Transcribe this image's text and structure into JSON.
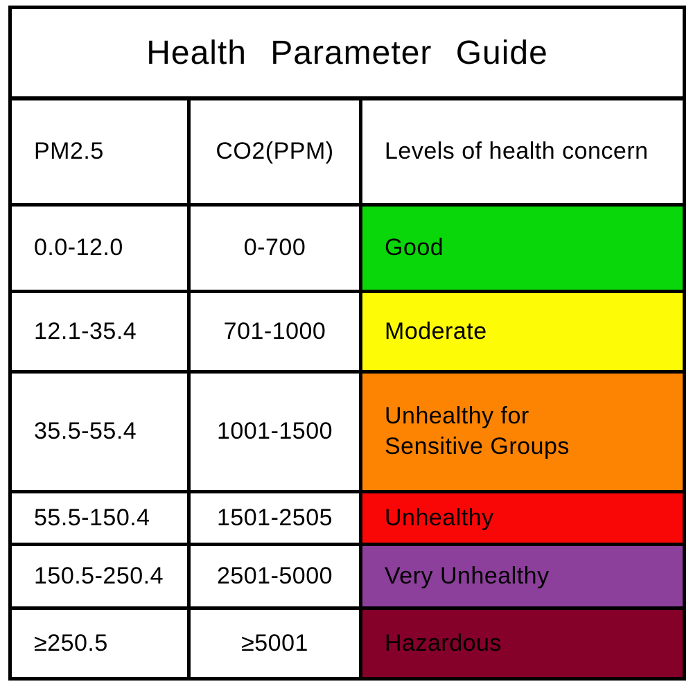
{
  "title": "Health Parameter Guide",
  "table": {
    "columns": [
      {
        "label": "PM2.5"
      },
      {
        "label": "CO2(PPM)"
      },
      {
        "label": "Levels of health concern"
      }
    ],
    "rows": [
      {
        "pm25": "0.0-12.0",
        "co2": "0-700",
        "level": "Good",
        "color": "#0ad70a"
      },
      {
        "pm25": "12.1-35.4",
        "co2": "701-1000",
        "level": "Moderate",
        "color": "#fefb06"
      },
      {
        "pm25": "35.5-55.4",
        "co2": "1001-1500",
        "level": "Unhealthy for\nSensitive Groups",
        "color": "#fd8402"
      },
      {
        "pm25": "55.5-150.4",
        "co2": "1501-2505",
        "level": "Unhealthy",
        "color": "#f90707"
      },
      {
        "pm25": "150.5-250.4",
        "co2": "2501-5000",
        "level": "Very Unhealthy",
        "color": "#8d3f9c"
      },
      {
        "pm25": "≥250.5",
        "co2": "≥5001",
        "level": "Hazardous",
        "color": "#850129"
      }
    ]
  },
  "chart_data": {
    "type": "table",
    "title": "Health Parameter Guide",
    "columns": [
      "PM2.5",
      "CO2(PPM)",
      "Levels of health concern"
    ],
    "rows": [
      [
        "0.0-12.0",
        "0-700",
        "Good"
      ],
      [
        "12.1-35.4",
        "701-1000",
        "Moderate"
      ],
      [
        "35.5-55.4",
        "1001-1500",
        "Unhealthy for Sensitive Groups"
      ],
      [
        "55.5-150.4",
        "1501-2505",
        "Unhealthy"
      ],
      [
        "150.5-250.4",
        "2501-5000",
        "Very Unhealthy"
      ],
      [
        "≥250.5",
        "≥5001",
        "Hazardous"
      ]
    ],
    "row_colors": [
      "#0ad70a",
      "#fefb06",
      "#fd8402",
      "#f90707",
      "#8d3f9c",
      "#850129"
    ],
    "notes": "Color swatch fills the entire third column cell of each data row; all text is black; grid lines are black on white background."
  }
}
